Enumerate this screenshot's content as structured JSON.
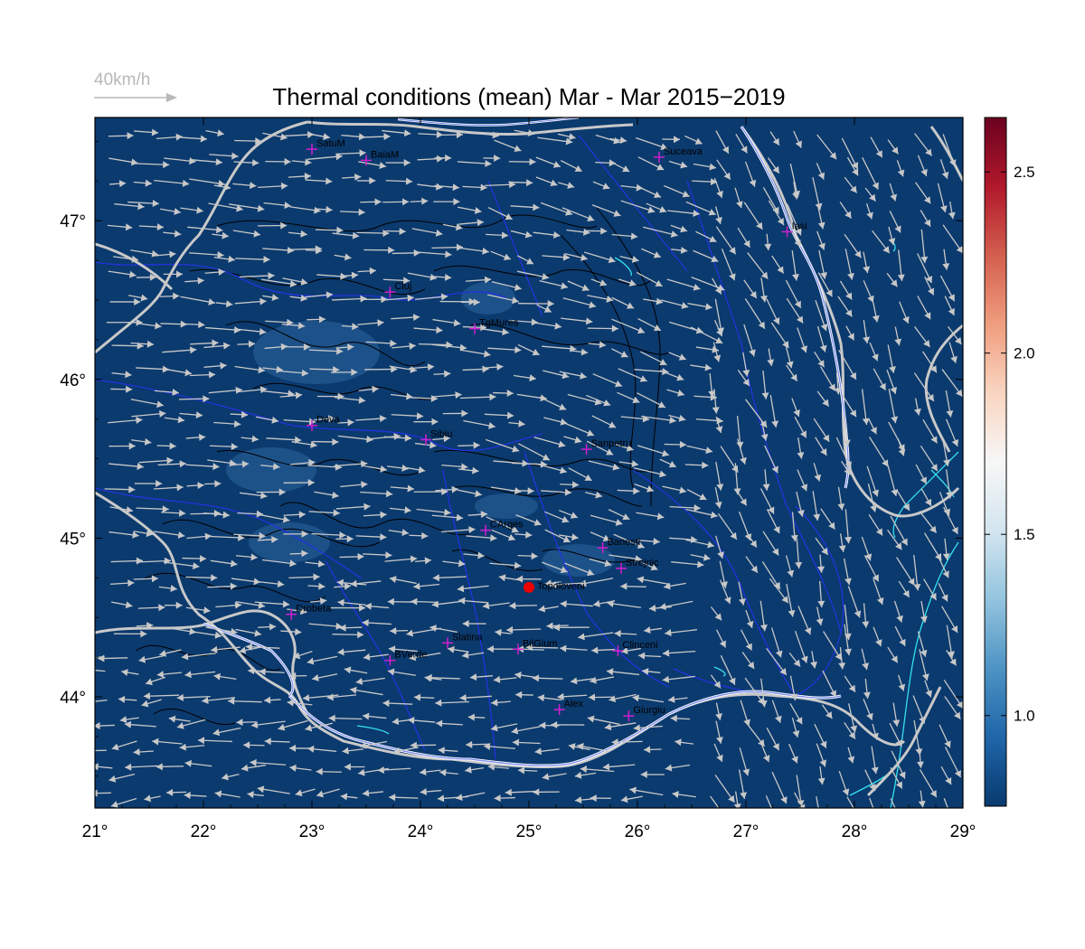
{
  "title": "Thermal conditions (mean) Mar - Mar  2015−2019",
  "wind_scale": {
    "label": "40km/h"
  },
  "map": {
    "lon_range": [
      21,
      29
    ],
    "lat_range": [
      43.3,
      47.65
    ],
    "x_ticks": [
      "21°",
      "22°",
      "23°",
      "24°",
      "25°",
      "26°",
      "27°",
      "28°",
      "29°"
    ],
    "y_ticks": [
      "44°",
      "45°",
      "46°",
      "47°"
    ],
    "background": "#0b3a6e",
    "arrow_color": "#c8c8c8",
    "border_color": "#c9c9c9",
    "river_color": "#2233dd",
    "coast_color": "#33e0ee",
    "contour_color": "#000000",
    "station_color": "#d020d0",
    "highlight_color": "#ee0000"
  },
  "stations": [
    {
      "name": "SatuM",
      "lon": 23.0,
      "lat": 47.45
    },
    {
      "name": "BaiaM",
      "lon": 23.5,
      "lat": 47.38
    },
    {
      "name": "Suceava",
      "lon": 26.2,
      "lat": 47.4
    },
    {
      "name": "Iasi",
      "lon": 27.38,
      "lat": 46.93
    },
    {
      "name": "Cluj",
      "lon": 23.72,
      "lat": 46.55
    },
    {
      "name": "TgMures",
      "lon": 24.5,
      "lat": 46.32
    },
    {
      "name": "Deva",
      "lon": 23.0,
      "lat": 45.71
    },
    {
      "name": "Sibiu",
      "lon": 24.05,
      "lat": 45.62
    },
    {
      "name": "Sanpetru",
      "lon": 25.53,
      "lat": 45.56
    },
    {
      "name": "CArges",
      "lon": 24.6,
      "lat": 45.05
    },
    {
      "name": "Banesti",
      "lon": 25.68,
      "lat": 44.94
    },
    {
      "name": "Strejnic",
      "lon": 25.85,
      "lat": 44.81
    },
    {
      "name": "Drobeta",
      "lon": 22.81,
      "lat": 44.52
    },
    {
      "name": "Slatina",
      "lon": 24.25,
      "lat": 44.34
    },
    {
      "name": "BilGium",
      "lon": 24.9,
      "lat": 44.3
    },
    {
      "name": "Clinceni",
      "lon": 25.82,
      "lat": 44.29
    },
    {
      "name": "BVerde",
      "lon": 23.72,
      "lat": 44.23
    },
    {
      "name": "Alex",
      "lon": 25.28,
      "lat": 43.92
    },
    {
      "name": "Giurgiu",
      "lon": 25.92,
      "lat": 43.88
    }
  ],
  "highlight": {
    "name": "Topoloveni",
    "lon": 25.0,
    "lat": 44.69
  },
  "colorbar": {
    "range": [
      0.75,
      2.65
    ],
    "ticks": [
      "1.0",
      "1.5",
      "2.0",
      "2.5"
    ],
    "tick_values": [
      1.0,
      1.5,
      2.0,
      2.5
    ],
    "colors": [
      "#083a6e",
      "#1f66aa",
      "#4d93c3",
      "#93c4de",
      "#d3e5ef",
      "#f7f7f7",
      "#f9d5c1",
      "#f09d7e",
      "#d35f4e",
      "#b1182b",
      "#6a0220"
    ]
  }
}
